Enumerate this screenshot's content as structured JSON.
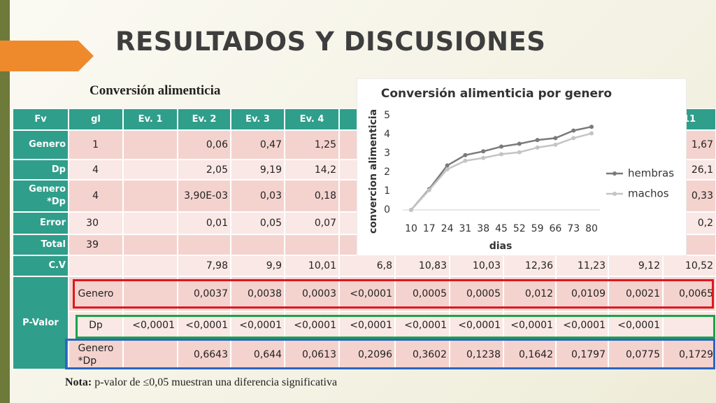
{
  "header": {
    "title": "RESULTADOS Y DISCUSIONES",
    "subtitle": "Conversión alimenticia"
  },
  "table": {
    "columns": [
      "Fv",
      "gl",
      "Ev. 1",
      "Ev. 2",
      "Ev. 3",
      "Ev. 4",
      null,
      null,
      null,
      null,
      null,
      null,
      "11"
    ],
    "rows": [
      [
        "Genero",
        "1",
        null,
        "0,06",
        "0,47",
        "1,25",
        null,
        null,
        null,
        null,
        null,
        null,
        "1,67"
      ],
      [
        "Dp",
        "4",
        null,
        "2,05",
        "9,19",
        "14,2",
        null,
        null,
        null,
        null,
        null,
        null,
        "26,1"
      ],
      [
        "Genero\n*Dp",
        "4",
        null,
        "3,90E-03",
        "0,03",
        "0,18",
        null,
        null,
        null,
        null,
        null,
        null,
        "0,33"
      ],
      [
        "Error",
        "30",
        null,
        "0,01",
        "0,05",
        "0,07",
        null,
        null,
        null,
        null,
        null,
        null,
        "0,2"
      ],
      [
        "Total",
        "39",
        null,
        null,
        null,
        null,
        null,
        null,
        null,
        null,
        null,
        null,
        null
      ],
      [
        "C.V",
        null,
        null,
        "7,98",
        "9,9",
        "10,01",
        "6,8",
        "10,83",
        "10,03",
        "12,36",
        "11,23",
        "9,12",
        "10,52"
      ],
      [
        "P-Valor",
        "Genero",
        null,
        "0,0037",
        "0,0038",
        "0,0003",
        "<0,0001",
        "0,0005",
        "0,0005",
        "0,012",
        "0,0109",
        "0,0021",
        "0,0065"
      ],
      [
        null,
        "Dp",
        "<0,0001",
        "<0,0001",
        "<0,0001",
        "<0,0001",
        "<0,0001",
        "<0,0001",
        "<0,0001",
        "<0,0001",
        "<0,0001",
        "<0,0001",
        null
      ],
      [
        null,
        "Genero\n*Dp",
        null,
        "0,6643",
        "0,644",
        "0,0613",
        "0,2096",
        "0,3602",
        "0,1238",
        "0,1642",
        "0,1797",
        "0,0775",
        "0,1729"
      ]
    ]
  },
  "note": {
    "label": "Nota:",
    "text": "p-valor de ≤0,05 muestran una diferencia significativa"
  },
  "chart_data": {
    "type": "line",
    "title": "Conversión alimenticia por genero",
    "x_label": "dias",
    "y_label": "convercion alimenticia",
    "categories": [
      "10",
      "17",
      "24",
      "31",
      "38",
      "45",
      "52",
      "59",
      "66",
      "73",
      "80"
    ],
    "series": [
      {
        "name": "hembras",
        "color": "#7a7a7a",
        "values": [
          0,
          1.1,
          2.35,
          2.9,
          3.1,
          3.35,
          3.5,
          3.7,
          3.8,
          4.2,
          4.4
        ]
      },
      {
        "name": "machos",
        "color": "#c4c4c4",
        "values": [
          0,
          1.05,
          2.15,
          2.6,
          2.75,
          2.95,
          3.05,
          3.3,
          3.45,
          3.8,
          4.05
        ]
      }
    ],
    "ylim": [
      0,
      5
    ],
    "yticks": [
      0,
      1,
      2,
      3,
      4,
      5
    ],
    "grid": false,
    "legend": "right"
  }
}
